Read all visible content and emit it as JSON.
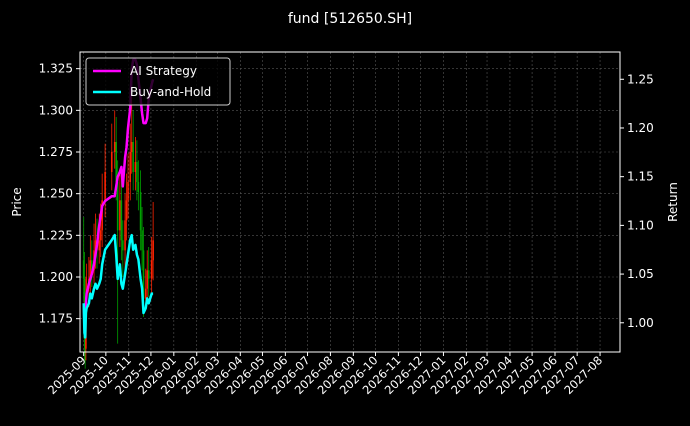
{
  "chart_data": {
    "type": "line",
    "title": "fund [512650.SH]",
    "ylabel_left": "Price",
    "ylabel_right": "Return",
    "grid": true,
    "legend_placement": "top-left",
    "xlim": [
      "2025-08-27",
      "2027-08-28"
    ],
    "ylim_left": [
      1.155,
      1.335
    ],
    "ylim_right": [
      0.97,
      1.278
    ],
    "yticks_left": [
      "1.175",
      "1.200",
      "1.225",
      "1.250",
      "1.275",
      "1.300",
      "1.325"
    ],
    "yticks_right": [
      "1.00",
      "1.05",
      "1.10",
      "1.15",
      "1.20",
      "1.25"
    ],
    "xticks": [
      "2025-09",
      "2025-10",
      "2025-11",
      "2025-12",
      "2026-01",
      "2026-02",
      "2026-03",
      "2026-04",
      "2026-05",
      "2026-06",
      "2026-07",
      "2026-08",
      "2026-09",
      "2026-10",
      "2026-11",
      "2026-12",
      "2027-01",
      "2027-02",
      "2027-03",
      "2027-04",
      "2027-05",
      "2027-06",
      "2027-07",
      "2027-08"
    ],
    "colors": {
      "up": "#ff2200",
      "down": "#00a000",
      "ai": "#ff00ff",
      "bh": "#00ffff"
    },
    "dates": [
      "2025-09-01",
      "2025-09-02",
      "2025-09-03",
      "2025-09-04",
      "2025-09-05",
      "2025-09-08",
      "2025-09-10",
      "2025-09-12",
      "2025-09-15",
      "2025-09-17",
      "2025-09-19",
      "2025-09-22",
      "2025-09-24",
      "2025-09-26",
      "2025-09-30",
      "2025-10-09",
      "2025-10-13",
      "2025-10-15",
      "2025-10-17",
      "2025-10-20",
      "2025-10-22",
      "2025-10-24",
      "2025-10-27",
      "2025-10-29",
      "2025-10-31",
      "2025-11-03",
      "2025-11-05",
      "2025-11-07",
      "2025-11-10",
      "2025-11-12",
      "2025-11-14",
      "2025-11-17",
      "2025-11-19",
      "2025-11-21",
      "2025-11-24",
      "2025-11-26",
      "2025-11-28",
      "2025-12-02",
      "2025-12-04"
    ],
    "price": {
      "open": [
        1.21,
        1.199,
        1.163,
        1.157,
        1.187,
        1.193,
        1.199,
        1.21,
        1.204,
        1.216,
        1.222,
        1.216,
        1.222,
        1.228,
        1.246,
        1.263,
        1.275,
        1.281,
        1.257,
        1.228,
        1.246,
        1.222,
        1.216,
        1.234,
        1.246,
        1.257,
        1.275,
        1.281,
        1.263,
        1.269,
        1.257,
        1.251,
        1.228,
        1.216,
        1.187,
        1.193,
        1.204,
        1.199,
        1.21
      ],
      "close": [
        1.199,
        1.163,
        1.157,
        1.187,
        1.193,
        1.199,
        1.21,
        1.204,
        1.216,
        1.222,
        1.216,
        1.222,
        1.228,
        1.246,
        1.263,
        1.275,
        1.281,
        1.257,
        1.228,
        1.246,
        1.222,
        1.216,
        1.234,
        1.246,
        1.257,
        1.275,
        1.281,
        1.263,
        1.269,
        1.257,
        1.251,
        1.228,
        1.216,
        1.187,
        1.193,
        1.204,
        1.199,
        1.21,
        1.222
      ],
      "high": [
        1.236,
        1.215,
        1.178,
        1.2,
        1.208,
        1.212,
        1.225,
        1.222,
        1.232,
        1.238,
        1.235,
        1.238,
        1.244,
        1.262,
        1.28,
        1.292,
        1.3,
        1.296,
        1.27,
        1.262,
        1.26,
        1.234,
        1.25,
        1.262,
        1.274,
        1.292,
        1.312,
        1.3,
        1.284,
        1.282,
        1.27,
        1.264,
        1.242,
        1.23,
        1.205,
        1.216,
        1.218,
        1.224,
        1.245
      ],
      "low": [
        1.186,
        1.15,
        1.145,
        1.15,
        1.176,
        1.182,
        1.188,
        1.194,
        1.196,
        1.205,
        1.205,
        1.208,
        1.212,
        1.218,
        1.236,
        1.252,
        1.265,
        1.246,
        1.16,
        1.218,
        1.21,
        1.2,
        1.205,
        1.222,
        1.235,
        1.246,
        1.262,
        1.252,
        1.252,
        1.246,
        1.24,
        1.216,
        1.204,
        1.176,
        1.18,
        1.184,
        1.188,
        1.19,
        1.198
      ]
    },
    "series": [
      {
        "name": "AI Strategy",
        "values": [
          1.02,
          1.0,
          1.005,
          1.02,
          1.03,
          1.04,
          1.045,
          1.05,
          1.06,
          1.07,
          1.08,
          1.1,
          1.11,
          1.12,
          1.125,
          1.13,
          1.13,
          1.14,
          1.15,
          1.155,
          1.16,
          1.14,
          1.17,
          1.18,
          1.2,
          1.22,
          1.26,
          1.27,
          1.27,
          1.265,
          1.25,
          1.23,
          1.215,
          1.205,
          1.205,
          1.21,
          1.23,
          1.245,
          1.25
        ]
      },
      {
        "name": "Buy-and-Hold",
        "values": [
          1.02,
          0.99,
          0.985,
          1.01,
          1.015,
          1.02,
          1.03,
          1.025,
          1.035,
          1.04,
          1.035,
          1.04,
          1.045,
          1.06,
          1.075,
          1.085,
          1.09,
          1.07,
          1.045,
          1.06,
          1.04,
          1.035,
          1.05,
          1.06,
          1.07,
          1.085,
          1.09,
          1.075,
          1.08,
          1.07,
          1.065,
          1.045,
          1.035,
          1.01,
          1.015,
          1.025,
          1.02,
          1.03,
          1.03
        ]
      }
    ]
  }
}
